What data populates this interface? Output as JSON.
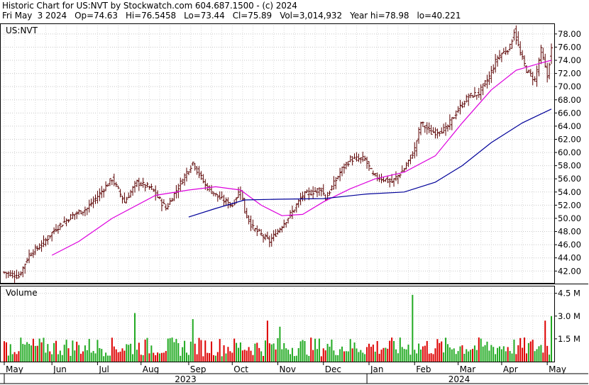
{
  "header": {
    "line1": "Historic Chart for US:NVT by Stockwatch.com 604.687.1500 - (c) 2024",
    "line2": "Fri May  3 2024   Op=74.63   Hi=76.5458   Lo=73.44   Cl=75.89   Vol=3,014,932   Year hi=78.98   lo=40.221"
  },
  "colors": {
    "background": "#ffffff",
    "grid": "#c8c8c8",
    "price_bars": "#5a0000",
    "ma_short": "#dd00dd",
    "ma_long": "#000099",
    "volume_up": "#22aa22",
    "volume_down": "#dd0000"
  },
  "chart_data": [
    {
      "type": "ohlc",
      "symbol_label": "US:NVT",
      "ylim": [
        40.2,
        79.6
      ],
      "y_ticks": [
        "42.00",
        "44.00",
        "46.00",
        "48.00",
        "50.00",
        "52.00",
        "54.00",
        "56.00",
        "58.00",
        "60.00",
        "62.00",
        "64.00",
        "66.00",
        "68.00",
        "70.00",
        "72.00",
        "74.00",
        "76.00",
        "78.00"
      ],
      "price_anchors": [
        {
          "date": "2023-05-01",
          "close": 41.8
        },
        {
          "date": "2023-05-10",
          "close": 41.2
        },
        {
          "date": "2023-05-17",
          "close": 44.5
        },
        {
          "date": "2023-05-25",
          "close": 46.0
        },
        {
          "date": "2023-06-05",
          "close": 48.5
        },
        {
          "date": "2023-06-15",
          "close": 50.5
        },
        {
          "date": "2023-06-26",
          "close": 51.5
        },
        {
          "date": "2023-07-06",
          "close": 54.5
        },
        {
          "date": "2023-07-12",
          "close": 56.0
        },
        {
          "date": "2023-07-20",
          "close": 52.5
        },
        {
          "date": "2023-07-28",
          "close": 55.5
        },
        {
          "date": "2023-08-08",
          "close": 54.5
        },
        {
          "date": "2023-08-17",
          "close": 51.5
        },
        {
          "date": "2023-08-31",
          "close": 57.0
        },
        {
          "date": "2023-09-05",
          "close": 58.5
        },
        {
          "date": "2023-09-13",
          "close": 55.0
        },
        {
          "date": "2023-09-22",
          "close": 53.0
        },
        {
          "date": "2023-10-02",
          "close": 52.0
        },
        {
          "date": "2023-10-06",
          "close": 54.5
        },
        {
          "date": "2023-10-10",
          "close": 51.0
        },
        {
          "date": "2023-10-16",
          "close": 48.5
        },
        {
          "date": "2023-10-26",
          "close": 46.5
        },
        {
          "date": "2023-11-02",
          "close": 48.5
        },
        {
          "date": "2023-11-10",
          "close": 51.0
        },
        {
          "date": "2023-11-17",
          "close": 53.5
        },
        {
          "date": "2023-11-30",
          "close": 54.5
        },
        {
          "date": "2023-12-04",
          "close": 53.0
        },
        {
          "date": "2023-12-14",
          "close": 57.5
        },
        {
          "date": "2023-12-20",
          "close": 59.0
        },
        {
          "date": "2023-12-29",
          "close": 59.0
        },
        {
          "date": "2024-01-04",
          "close": 56.5
        },
        {
          "date": "2024-01-17",
          "close": 55.5
        },
        {
          "date": "2024-01-25",
          "close": 57.5
        },
        {
          "date": "2024-02-01",
          "close": 60.5
        },
        {
          "date": "2024-02-06",
          "close": 64.5
        },
        {
          "date": "2024-02-13",
          "close": 63.0
        },
        {
          "date": "2024-02-22",
          "close": 63.5
        },
        {
          "date": "2024-03-01",
          "close": 66.5
        },
        {
          "date": "2024-03-08",
          "close": 68.5
        },
        {
          "date": "2024-03-15",
          "close": 69.0
        },
        {
          "date": "2024-03-22",
          "close": 71.5
        },
        {
          "date": "2024-03-28",
          "close": 74.5
        },
        {
          "date": "2024-04-05",
          "close": 76.0
        },
        {
          "date": "2024-04-09",
          "close": 78.5
        },
        {
          "date": "2024-04-12",
          "close": 75.0
        },
        {
          "date": "2024-04-17",
          "close": 72.5
        },
        {
          "date": "2024-04-23",
          "close": 71.0
        },
        {
          "date": "2024-04-26",
          "close": 75.5
        },
        {
          "date": "2024-05-01",
          "close": 71.5
        },
        {
          "date": "2024-05-03",
          "close": 75.89
        }
      ],
      "ma_short": {
        "points": [
          {
            "date": "2023-06-01",
            "value": 44.4
          },
          {
            "date": "2023-06-20",
            "value": 46.5
          },
          {
            "date": "2023-07-12",
            "value": 50.0
          },
          {
            "date": "2023-08-10",
            "value": 53.5
          },
          {
            "date": "2023-09-01",
            "value": 54.3
          },
          {
            "date": "2023-09-20",
            "value": 54.8
          },
          {
            "date": "2023-10-06",
            "value": 54.3
          },
          {
            "date": "2023-10-20",
            "value": 52.0
          },
          {
            "date": "2023-11-03",
            "value": 50.4
          },
          {
            "date": "2023-11-17",
            "value": 50.6
          },
          {
            "date": "2023-12-01",
            "value": 52.5
          },
          {
            "date": "2023-12-20",
            "value": 54.5
          },
          {
            "date": "2024-01-05",
            "value": 56.0
          },
          {
            "date": "2024-01-25",
            "value": 57.0
          },
          {
            "date": "2024-02-15",
            "value": 59.5
          },
          {
            "date": "2024-03-05",
            "value": 64.5
          },
          {
            "date": "2024-03-25",
            "value": 69.5
          },
          {
            "date": "2024-04-10",
            "value": 72.5
          },
          {
            "date": "2024-04-25",
            "value": 73.5
          },
          {
            "date": "2024-05-03",
            "value": 74.0
          }
        ]
      },
      "ma_long": {
        "points": [
          {
            "date": "2023-09-01",
            "value": 50.2
          },
          {
            "date": "2023-09-20",
            "value": 51.5
          },
          {
            "date": "2023-10-10",
            "value": 52.8
          },
          {
            "date": "2023-11-01",
            "value": 52.9
          },
          {
            "date": "2023-12-01",
            "value": 53.0
          },
          {
            "date": "2024-01-01",
            "value": 53.7
          },
          {
            "date": "2024-01-25",
            "value": 54.0
          },
          {
            "date": "2024-02-15",
            "value": 55.5
          },
          {
            "date": "2024-03-05",
            "value": 58.0
          },
          {
            "date": "2024-03-25",
            "value": 61.5
          },
          {
            "date": "2024-04-15",
            "value": 64.5
          },
          {
            "date": "2024-05-03",
            "value": 66.6
          }
        ]
      }
    },
    {
      "type": "bar",
      "title": "Volume",
      "ylim": [
        0,
        5.0
      ],
      "y_ticks": [
        "1.5 M",
        "3.0 M",
        "4.5 M"
      ],
      "unit": "M shares",
      "spikes": [
        {
          "date": "2023-07-27",
          "value": 3.2
        },
        {
          "date": "2023-09-05",
          "value": 2.8
        },
        {
          "date": "2023-10-25",
          "value": 2.7
        },
        {
          "date": "2023-11-02",
          "value": 2.3
        },
        {
          "date": "2024-01-31",
          "value": 4.4
        },
        {
          "date": "2024-04-30",
          "value": 2.7
        },
        {
          "date": "2024-05-03",
          "value": 3.0
        }
      ],
      "base_level": 1.0
    }
  ],
  "x_axis": {
    "months": [
      {
        "label": "May",
        "date": "2023-05-01"
      },
      {
        "label": "Jun",
        "date": "2023-06-01"
      },
      {
        "label": "Jul",
        "date": "2023-07-03"
      },
      {
        "label": "Aug",
        "date": "2023-08-01"
      },
      {
        "label": "Sep",
        "date": "2023-09-01"
      },
      {
        "label": "Oct",
        "date": "2023-10-02"
      },
      {
        "label": "Nov",
        "date": "2023-11-01"
      },
      {
        "label": "Dec",
        "date": "2023-12-01"
      },
      {
        "label": "Jan",
        "date": "2024-01-02"
      },
      {
        "label": "Feb",
        "date": "2024-02-01"
      },
      {
        "label": "Mar",
        "date": "2024-03-01"
      },
      {
        "label": "Apr",
        "date": "2024-04-01"
      },
      {
        "label": "May",
        "date": "2024-05-01"
      }
    ],
    "years": [
      {
        "label": "2023",
        "start": "2023-05-01",
        "end": "2024-01-01"
      },
      {
        "label": "2024",
        "start": "2024-01-01",
        "end": "2024-05-03"
      }
    ]
  }
}
